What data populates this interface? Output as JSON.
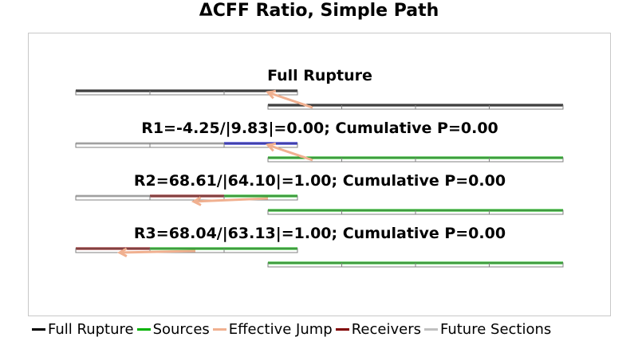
{
  "title": "ΔCFF Ratio, Simple Path",
  "colors": {
    "full_rupture": "#000000",
    "sources": "#00b200",
    "effective_jump": "#f0b090",
    "receivers": "#800000",
    "future_sections": "#c0c0c0",
    "r1_receiver": "#0000cc",
    "ticks": "#808080"
  },
  "panels": [
    {
      "label": "Full Rupture"
    },
    {
      "label": "R1=-4.25/|9.83|=0.00; Cumulative P=0.00"
    },
    {
      "label": "R2=68.61/|64.10|=1.00; Cumulative P=0.00"
    },
    {
      "label": "R3=68.04/|63.13|=1.00; Cumulative P=0.00"
    }
  ],
  "legend": [
    {
      "label": "Full Rupture",
      "color_key": "full_rupture"
    },
    {
      "label": "Sources",
      "color_key": "sources"
    },
    {
      "label": "Effective Jump",
      "color_key": "effective_jump"
    },
    {
      "label": "Receivers",
      "color_key": "receivers"
    },
    {
      "label": "Future Sections",
      "color_key": "future_sections"
    }
  ]
}
